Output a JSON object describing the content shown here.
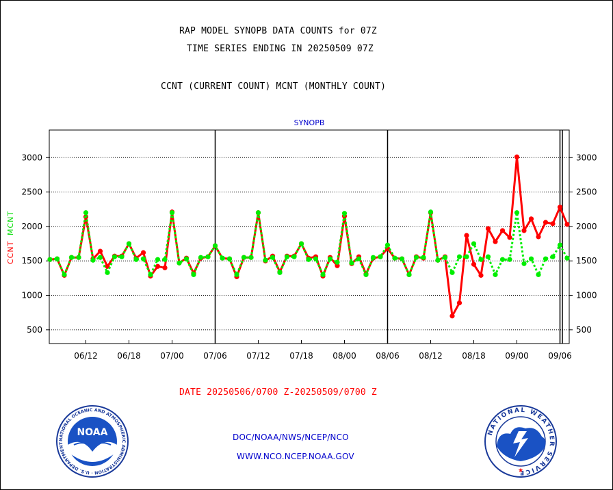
{
  "header": {
    "title_line1": "RAP MODEL SYNOPB DATA COUNTS for 07Z",
    "title_line2": "TIME SERIES ENDING IN 20250509 07Z",
    "subtitle": "CCNT (CURRENT COUNT) MCNT (MONTHLY COUNT)"
  },
  "chart_data": {
    "type": "line",
    "title": "SYNOPB",
    "ylabel_ccnt": "CCNT",
    "ylabel_mcnt": "MCNT",
    "ylim": [
      300,
      3400
    ],
    "yticks": [
      500,
      1000,
      1500,
      2000,
      2500,
      3000
    ],
    "x_ticks": [
      {
        "label": "06/12",
        "index": 5
      },
      {
        "label": "06/18",
        "index": 11
      },
      {
        "label": "07/00",
        "index": 17
      },
      {
        "label": "07/06",
        "index": 23
      },
      {
        "label": "07/12",
        "index": 29
      },
      {
        "label": "07/18",
        "index": 35
      },
      {
        "label": "08/00",
        "index": 41
      },
      {
        "label": "08/06",
        "index": 47
      },
      {
        "label": "08/12",
        "index": 53
      },
      {
        "label": "08/18",
        "index": 59
      },
      {
        "label": "09/00",
        "index": 65
      },
      {
        "label": "09/06",
        "index": 71
      }
    ],
    "day_boundaries": [
      23,
      47,
      71
    ],
    "grid": true,
    "colors": {
      "ccnt": "#ff0000",
      "mcnt": "#00ee00",
      "axis_text": "#000000",
      "title": "#0000cc"
    },
    "series": [
      {
        "name": "CCNT",
        "style": "solid",
        "color": "#ff0000",
        "values": [
          1520,
          1530,
          1290,
          1550,
          1550,
          2140,
          1530,
          1640,
          1420,
          1570,
          1570,
          1750,
          1540,
          1620,
          1280,
          1420,
          1400,
          2210,
          1470,
          1540,
          1320,
          1540,
          1560,
          1720,
          1540,
          1530,
          1270,
          1550,
          1550,
          2200,
          1500,
          1570,
          1340,
          1570,
          1570,
          1750,
          1540,
          1560,
          1280,
          1550,
          1430,
          2150,
          1460,
          1560,
          1310,
          1540,
          1560,
          1680,
          1540,
          1530,
          1300,
          1560,
          1540,
          2200,
          1510,
          1560,
          700,
          890,
          1870,
          1450,
          1290,
          1970,
          1780,
          1940,
          1840,
          3010,
          1940,
          2110,
          1850,
          2060,
          2040,
          2280,
          2030
        ]
      },
      {
        "name": "MCNT",
        "style": "dotted",
        "color": "#00ee00",
        "values": [
          1520,
          1530,
          1300,
          1550,
          1550,
          2200,
          1510,
          1550,
          1330,
          1560,
          1560,
          1750,
          1520,
          1530,
          1300,
          1520,
          1520,
          2200,
          1470,
          1530,
          1300,
          1550,
          1560,
          1720,
          1540,
          1530,
          1300,
          1550,
          1550,
          2200,
          1510,
          1550,
          1330,
          1560,
          1560,
          1750,
          1520,
          1530,
          1300,
          1530,
          1480,
          2190,
          1470,
          1530,
          1300,
          1550,
          1560,
          1730,
          1540,
          1530,
          1300,
          1550,
          1550,
          2210,
          1510,
          1550,
          1330,
          1560,
          1560,
          1750,
          1520,
          1560,
          1300,
          1520,
          1520,
          2200,
          1460,
          1530,
          1300,
          1530,
          1560,
          1730,
          1540
        ]
      }
    ]
  },
  "footer": {
    "date_range": "DATE 20250506/0700 Z-20250509/0700 Z",
    "org_line": "DOC/NOAA/NWS/NCEP/NCO",
    "url_line": "WWW.NCO.NCEP.NOAA.GOV",
    "noaa_logo_text": "NOAA",
    "noaa_ring_text": "NATIONAL OCEANIC AND ATMOSPHERIC ADMINISTRATION · U.S. DEPARTMENT OF COMMERCE ·",
    "nws_ring_text": "NATIONAL WEATHER SERVICE"
  }
}
